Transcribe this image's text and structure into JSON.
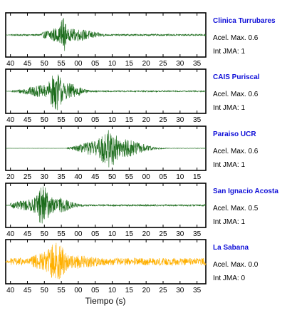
{
  "colors": {
    "trace": "#1a6b1a",
    "trace_highlight": "#ffb000",
    "title": "#1010d8",
    "axis": "#000000"
  },
  "xlabel": "Tiempo (s)",
  "chart_data": [
    {
      "type": "line",
      "station": "Clinica Turrubares",
      "acel_label": "Acel. Max. 0.6",
      "int_label": "Int JMA: 1",
      "ticks": [
        "40",
        "45",
        "50",
        "55",
        "00",
        "05",
        "10",
        "15",
        "20",
        "25",
        "30",
        "35"
      ],
      "tick_offsets_s": [
        0,
        5,
        10,
        15,
        20,
        25,
        30,
        35,
        40,
        45,
        50,
        55
      ],
      "t0_offset_s": 0,
      "xlim_s": [
        -1.4,
        57.6
      ],
      "color": "trace",
      "envelope": {
        "start_s": 0,
        "peaks": [
          [
            15.5,
            0.92,
            0.8
          ],
          [
            13,
            0.35,
            2.5
          ],
          [
            19,
            0.3,
            5
          ]
        ],
        "noise": 0.04
      }
    },
    {
      "type": "line",
      "station": "CAIS Puriscal",
      "acel_label": "Acel. Max. 0.6",
      "int_label": "Int JMA: 1",
      "ticks": [
        "40",
        "45",
        "50",
        "55",
        "00",
        "05",
        "10",
        "15",
        "20",
        "25",
        "30",
        "35"
      ],
      "tick_offsets_s": [
        0,
        5,
        10,
        15,
        20,
        25,
        30,
        35,
        40,
        45,
        50,
        55
      ],
      "t0_offset_s": 0,
      "xlim_s": [
        -1.4,
        57.6
      ],
      "color": "trace",
      "envelope": {
        "start_s": 0.5,
        "peaks": [
          [
            13.5,
            0.95,
            1.8
          ],
          [
            10,
            0.3,
            5
          ],
          [
            17,
            0.4,
            3
          ]
        ],
        "noise": 0.03
      }
    },
    {
      "type": "line",
      "station": "Paraiso UCR",
      "acel_label": "Acel. Max. 0.6",
      "int_label": "Int JMA: 1",
      "ticks": [
        "20",
        "25",
        "30",
        "35",
        "40",
        "45",
        "50",
        "55",
        "00",
        "05",
        "10",
        "15"
      ],
      "tick_offsets_s": [
        0,
        5,
        10,
        15,
        20,
        25,
        30,
        35,
        40,
        45,
        50,
        55
      ],
      "t0_offset_s": 0,
      "xlim_s": [
        -1.4,
        57.6
      ],
      "color": "trace",
      "envelope": {
        "start_s": 16.5,
        "peaks": [
          [
            29,
            0.95,
            2.5
          ],
          [
            25,
            0.35,
            4
          ],
          [
            33,
            0.45,
            5
          ]
        ],
        "noise": 0.01
      }
    },
    {
      "type": "line",
      "station": "San Ignacio Acosta",
      "acel_label": "Acel. Max. 0.5",
      "int_label": "Int JMA: 1",
      "ticks": [
        "40",
        "45",
        "50",
        "55",
        "00",
        "05",
        "10",
        "15",
        "20",
        "25",
        "30",
        "35"
      ],
      "tick_offsets_s": [
        0,
        5,
        10,
        15,
        20,
        25,
        30,
        35,
        40,
        45,
        50,
        55
      ],
      "t0_offset_s": 0,
      "xlim_s": [
        -1.4,
        57.6
      ],
      "color": "trace",
      "envelope": {
        "start_s": 0,
        "peaks": [
          [
            9.5,
            0.95,
            1.8
          ],
          [
            7,
            0.3,
            5
          ],
          [
            13,
            0.4,
            4
          ]
        ],
        "noise": 0.04
      }
    },
    {
      "type": "line",
      "station": "La Sabana",
      "acel_label": "Acel. Max. 0.0",
      "int_label": "Int JMA: 0",
      "ticks": [
        "40",
        "45",
        "50",
        "55",
        "00",
        "05",
        "10",
        "15",
        "20",
        "25",
        "30",
        "35"
      ],
      "tick_offsets_s": [
        0,
        5,
        10,
        15,
        20,
        25,
        30,
        35,
        40,
        45,
        50,
        55
      ],
      "t0_offset_s": 0,
      "xlim_s": [
        -1.4,
        57.6
      ],
      "color": "trace_highlight",
      "envelope": {
        "start_s": 0,
        "peaks": [
          [
            13.5,
            0.95,
            2.5
          ],
          [
            11,
            0.5,
            4
          ],
          [
            18,
            0.35,
            8
          ]
        ],
        "noise": 0.18
      }
    }
  ]
}
